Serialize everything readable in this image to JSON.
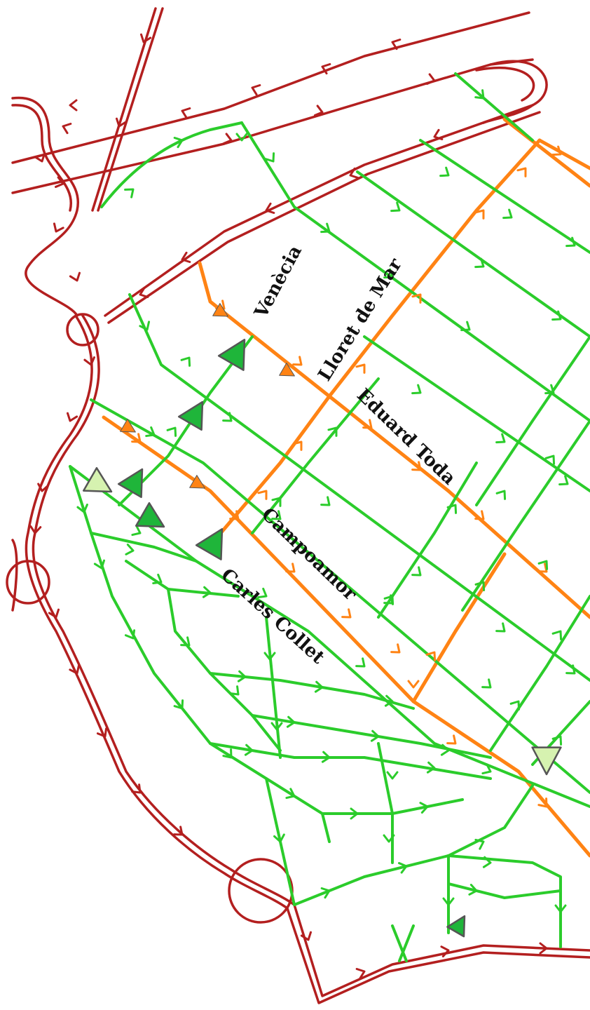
{
  "map": {
    "colors": {
      "arterial": "#b31f1f",
      "collector": "#ff8314",
      "local": "#2bcc2b",
      "marker_dark": "#1fb53a",
      "marker_light": "#d6f2b0",
      "marker_orange": "#ff8314",
      "marker_outline": "#555555"
    },
    "labels": {
      "venecia": "Venècia",
      "lloret": "Lloret de Mar",
      "eduard": "Eduard Toda",
      "campoamor": "Campoamor",
      "carles": "Carles Collet"
    }
  }
}
